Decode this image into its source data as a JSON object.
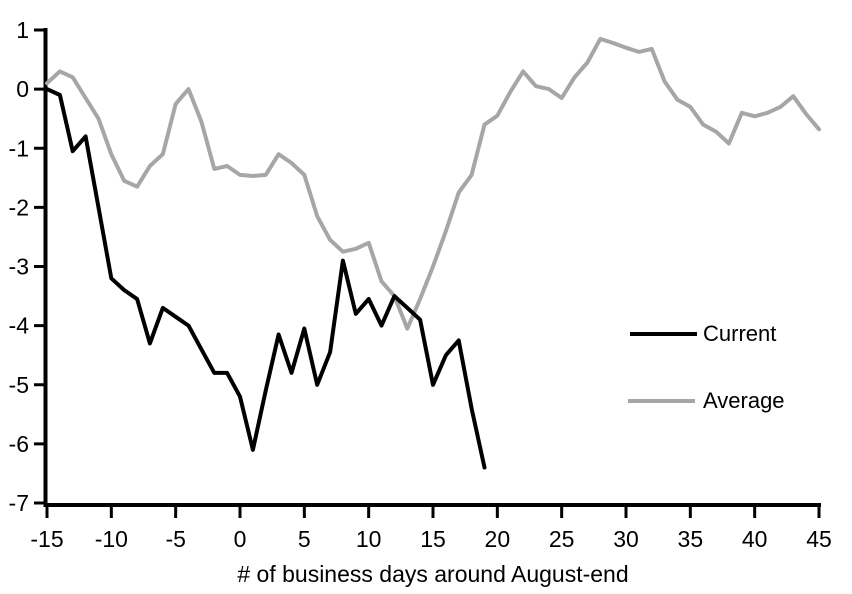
{
  "chart_data": {
    "type": "line",
    "xlabel": "# of business days around August-end",
    "ylabel": "",
    "xlim": [
      -15,
      45
    ],
    "ylim": [
      -7,
      1
    ],
    "x_ticks": [
      -15,
      -10,
      -5,
      0,
      5,
      10,
      15,
      20,
      25,
      30,
      35,
      40,
      45
    ],
    "y_ticks": [
      1,
      0,
      -1,
      -2,
      -3,
      -4,
      -5,
      -6,
      -7
    ],
    "grid": false,
    "legend_position": "right-middle",
    "axis_color": "#000000",
    "series": [
      {
        "name": "Current",
        "color": "#000000",
        "x": [
          -15,
          -14,
          -13,
          -12,
          -11,
          -10,
          -9,
          -8,
          -7,
          -6,
          -5,
          -4,
          -3,
          -2,
          -1,
          0,
          1,
          2,
          3,
          4,
          5,
          6,
          7,
          8,
          9,
          10,
          11,
          12,
          13,
          14,
          15,
          16,
          17,
          18,
          19
        ],
        "values": [
          0.0,
          -0.1,
          -1.05,
          -0.8,
          -2.0,
          -3.2,
          -3.4,
          -3.55,
          -4.3,
          -3.7,
          -3.85,
          -4.0,
          -4.4,
          -4.8,
          -4.8,
          -5.2,
          -6.1,
          -5.1,
          -4.15,
          -4.8,
          -4.05,
          -5.0,
          -4.45,
          -2.9,
          -3.8,
          -3.55,
          -4.0,
          -3.5,
          -3.7,
          -3.9,
          -5.0,
          -4.5,
          -4.25,
          -5.4,
          -6.4
        ]
      },
      {
        "name": "Average",
        "color": "#A6A6A6",
        "x": [
          -15,
          -14,
          -13,
          -12,
          -11,
          -10,
          -9,
          -8,
          -7,
          -6,
          -5,
          -4,
          -3,
          -2,
          -1,
          0,
          1,
          2,
          3,
          4,
          5,
          6,
          7,
          8,
          9,
          10,
          11,
          12,
          13,
          14,
          15,
          16,
          17,
          18,
          19,
          20,
          21,
          22,
          23,
          24,
          25,
          26,
          27,
          28,
          29,
          30,
          31,
          32,
          33,
          34,
          35,
          36,
          37,
          38,
          39,
          40,
          41,
          42,
          43,
          44,
          45
        ],
        "values": [
          0.1,
          0.3,
          0.2,
          -0.15,
          -0.5,
          -1.1,
          -1.55,
          -1.65,
          -1.3,
          -1.1,
          -0.25,
          0.0,
          -0.55,
          -1.35,
          -1.3,
          -1.45,
          -1.47,
          -1.45,
          -1.1,
          -1.25,
          -1.45,
          -2.15,
          -2.55,
          -2.75,
          -2.7,
          -2.6,
          -3.25,
          -3.5,
          -4.05,
          -3.55,
          -3.0,
          -2.4,
          -1.75,
          -1.45,
          -0.6,
          -0.45,
          -0.05,
          0.3,
          0.05,
          0.0,
          -0.15,
          0.2,
          0.45,
          0.85,
          0.78,
          0.7,
          0.63,
          0.68,
          0.13,
          -0.18,
          -0.3,
          -0.6,
          -0.72,
          -0.92,
          -0.4,
          -0.46,
          -0.4,
          -0.3,
          -0.12,
          -0.42,
          -0.68
        ]
      }
    ]
  },
  "legend": {
    "items": [
      {
        "label": "Current",
        "color": "#000000"
      },
      {
        "label": "Average",
        "color": "#A6A6A6"
      }
    ]
  }
}
